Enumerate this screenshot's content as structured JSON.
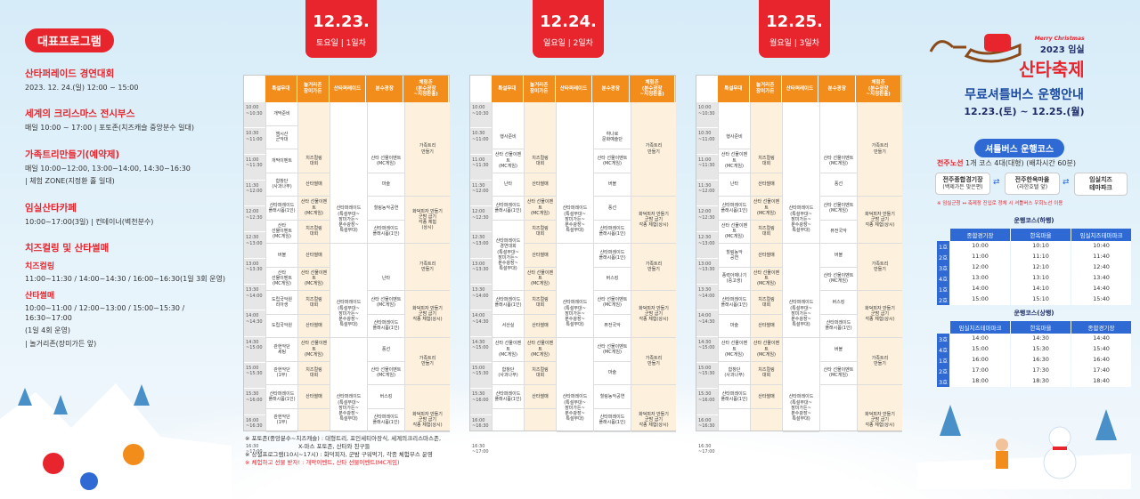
{
  "left": {
    "badge": "대표프로그램",
    "sections": [
      {
        "title": "산타퍼레이드 경연대회",
        "lines": [
          "2023. 12. 24.(일) 12:00 ~ 15:00"
        ]
      },
      {
        "title": "세계의 크리스마스 전시부스",
        "lines": [
          "매일 10:00 ~ 17:00 | 포토존(치즈캐슬 중앙분수 일대)"
        ]
      },
      {
        "title": "가족트리만들기(예약제)",
        "lines": [
          "매일 10:00~12:00, 13:00~14:00, 14:30~16:30",
          "| 체험 ZONE(지정환 홀 일대)"
        ]
      },
      {
        "title": "임실산타카페",
        "lines": [
          "10:00~17:00(3일) | 컨테이너(벽천분수)"
        ]
      },
      {
        "title": "치즈컬링 및 산타썰매",
        "lines": []
      }
    ],
    "sub1": "치즈컬링",
    "sub1_line": "11:00~11:30 / 14:00~14:30 / 16:00~16:30(1일 3회 운영)",
    "sub2": "산타썰매",
    "sub2_lines": [
      "10:00~11:00 / 12:00~13:00 / 15:00~15:30 / 16:30~17:00",
      "(1일 4회 운영)",
      "| 놀거리존(장미가든 앞)"
    ]
  },
  "days": [
    {
      "date": "12.23.",
      "weekday": "토요일 | 1일차"
    },
    {
      "date": "12.24.",
      "weekday": "일요일 | 2일차"
    },
    {
      "date": "12.25.",
      "weekday": "월요일 | 3일차"
    }
  ],
  "columns": [
    "특설무대",
    "놀거리존\n장미가든",
    "산타퍼레이드",
    "분수광장",
    "체험존\n(분수광장\n~지정환홀)"
  ],
  "times": [
    "10:00\n~10:30",
    "10:30\n~11:00",
    "11:00\n~11:30",
    "11:30\n~12:00",
    "12:00\n~12:30",
    "12:30\n~13:00",
    "13:00\n~13:30",
    "13:30\n~14:00",
    "14:00\n~14:30",
    "14:30\n~15:00",
    "15:00\n~15:30",
    "15:30\n~16:00",
    "16:00\n~16:30",
    "16:30\n~17:00"
  ],
  "tables": [
    {
      "cells": [
        {
          "c": 0,
          "r": 0,
          "s": 1,
          "t": "개막준비"
        },
        {
          "c": 0,
          "r": 1,
          "s": 1,
          "t": "엠시산\n군악대"
        },
        {
          "c": 0,
          "r": 2,
          "s": 1,
          "t": "개막이벤트"
        },
        {
          "c": 0,
          "r": 3,
          "s": 1,
          "t": "합창단\n(사과나무)"
        },
        {
          "c": 0,
          "r": 4,
          "s": 1,
          "t": "산타퍼레이드\n플래시몹(1인)"
        },
        {
          "c": 0,
          "r": 5,
          "s": 1,
          "t": "산타\n선물이벤트\n(MC게임)"
        },
        {
          "c": 0,
          "r": 6,
          "s": 1,
          "t": "버블"
        },
        {
          "c": 0,
          "r": 7,
          "s": 1,
          "t": "산타\n선물이벤트\n(MC게임)"
        },
        {
          "c": 0,
          "r": 8,
          "s": 1,
          "t": "도립국악원\n리아생"
        },
        {
          "c": 0,
          "r": 9,
          "s": 1,
          "t": "도립국악원"
        },
        {
          "c": 0,
          "r": 10,
          "s": 1,
          "t": "관현악단\n세팅"
        },
        {
          "c": 0,
          "r": 11,
          "s": 1,
          "t": "관현악단\n(1부)"
        },
        {
          "c": 0,
          "r": 12,
          "s": 1,
          "t": "산타퍼레이드\n플래시몹(1인)"
        },
        {
          "c": 0,
          "r": 13,
          "s": 1,
          "t": "관현악단\n(1부)"
        },
        {
          "c": 1,
          "r": 2,
          "s": 1,
          "t": "치즈컬링\n대회"
        },
        {
          "c": 1,
          "r": 3,
          "s": 1,
          "t": "산타썰매"
        },
        {
          "c": 1,
          "r": 4,
          "s": 1,
          "t": "산타 선물이벤트\n(MC게임)"
        },
        {
          "c": 1,
          "r": 5,
          "s": 1,
          "t": "치즈컬링\n대회"
        },
        {
          "c": 1,
          "r": 6,
          "s": 1,
          "t": "산타썰매"
        },
        {
          "c": 1,
          "r": 7,
          "s": 1,
          "t": "산타 선물이벤트\n(MC게임)"
        },
        {
          "c": 1,
          "r": 8,
          "s": 1,
          "t": "치즈컬링\n대회"
        },
        {
          "c": 1,
          "r": 9,
          "s": 1,
          "t": "산타썰매"
        },
        {
          "c": 1,
          "r": 10,
          "s": 1,
          "t": "산타 선물이벤트\n(MC게임)"
        },
        {
          "c": 1,
          "r": 11,
          "s": 1,
          "t": "치즈컬링\n대회"
        },
        {
          "c": 1,
          "r": 12,
          "s": 1,
          "t": "산타썰매"
        },
        {
          "c": 2,
          "r": 4,
          "s": 2,
          "t": "산타퍼레이드\n(특설무대~\n장미가든~\n분수광장~\n특설무대)"
        },
        {
          "c": 2,
          "r": 8,
          "s": 2,
          "t": "산타퍼레이드\n(특설무대~\n장미가든~\n분수광장~\n특설무대)"
        },
        {
          "c": 2,
          "r": 12,
          "s": 2,
          "t": "산타퍼레이드\n(특설무대~\n장미가든~\n분수광장~\n특설무대)"
        },
        {
          "c": 3,
          "r": 2,
          "s": 1,
          "t": "산타 선물이벤트\n(MC게임)"
        },
        {
          "c": 3,
          "r": 3,
          "s": 1,
          "t": "마술"
        },
        {
          "c": 3,
          "r": 4,
          "s": 1,
          "t": "힐링농악공연"
        },
        {
          "c": 3,
          "r": 5,
          "s": 1,
          "t": "산타퍼레이드\n플래시몹(1인)"
        },
        {
          "c": 3,
          "r": 7,
          "s": 1,
          "t": "난타"
        },
        {
          "c": 3,
          "r": 8,
          "s": 1,
          "t": "산타 선물이벤트\n(MC게임)"
        },
        {
          "c": 3,
          "r": 9,
          "s": 1,
          "t": "산타퍼레이드\n플래시몹(1인)"
        },
        {
          "c": 3,
          "r": 10,
          "s": 1,
          "t": "풍선"
        },
        {
          "c": 3,
          "r": 11,
          "s": 1,
          "t": "산타 선물이벤트\n(MC게임)"
        },
        {
          "c": 3,
          "r": 12,
          "s": 1,
          "t": "버스킹"
        },
        {
          "c": 3,
          "r": 13,
          "s": 1,
          "t": "산타퍼레이드\n플래시몹(1인)"
        },
        {
          "c": 4,
          "r": 0,
          "s": 4,
          "t": "가족트리\n만들기"
        },
        {
          "c": 4,
          "r": 4,
          "s": 2,
          "t": "화덕피자 만들기\n군밤 굽기\n각종 체험\n(상시)"
        },
        {
          "c": 4,
          "r": 6,
          "s": 2,
          "t": "가족트리\n만들기"
        },
        {
          "c": 4,
          "r": 8,
          "s": 2,
          "t": "화덕피자 만들기\n군밤 굽기\n각종 체험(상시)"
        },
        {
          "c": 4,
          "r": 10,
          "s": 2,
          "t": "가족트리\n만들기"
        },
        {
          "c": 4,
          "r": 13,
          "s": 1,
          "t": "화덕피자 만들기\n군밤 굽기\n각종 체험(상시)"
        }
      ]
    },
    {
      "cells": [
        {
          "c": 0,
          "r": 1,
          "s": 1,
          "t": "행사준비"
        },
        {
          "c": 0,
          "r": 2,
          "s": 1,
          "t": "산타 선물이벤트\n(MC게임)"
        },
        {
          "c": 0,
          "r": 3,
          "s": 1,
          "t": "난타"
        },
        {
          "c": 0,
          "r": 4,
          "s": 1,
          "t": "산타퍼레이드\n플래시몹(1인)"
        },
        {
          "c": 0,
          "r": 5,
          "s": 3,
          "t": "산타퍼레이드\n경연대회\n(특설무대~\n장미가든~\n분수광장~\n특설무대)"
        },
        {
          "c": 0,
          "r": 8,
          "s": 1,
          "t": "산타퍼레이드\n플래시몹(1인)"
        },
        {
          "c": 0,
          "r": 9,
          "s": 1,
          "t": "서산실"
        },
        {
          "c": 0,
          "r": 10,
          "s": 1,
          "t": "산타 선물이벤트\n(MC게임)"
        },
        {
          "c": 0,
          "r": 11,
          "s": 1,
          "t": "합창단\n(사과나무)"
        },
        {
          "c": 0,
          "r": 12,
          "s": 1,
          "t": "산타퍼레이드\n플래시몹(1인)"
        },
        {
          "c": 1,
          "r": 2,
          "s": 1,
          "t": "치즈컬링\n대회"
        },
        {
          "c": 1,
          "r": 3,
          "s": 1,
          "t": "산타썰매"
        },
        {
          "c": 1,
          "r": 4,
          "s": 1,
          "t": "산타 선물이벤트\n(MC게임)"
        },
        {
          "c": 1,
          "r": 5,
          "s": 1,
          "t": "치즈컬링\n대회"
        },
        {
          "c": 1,
          "r": 6,
          "s": 1,
          "t": "산타썰매"
        },
        {
          "c": 1,
          "r": 7,
          "s": 1,
          "t": "산타 선물이벤트\n(MC게임)"
        },
        {
          "c": 1,
          "r": 8,
          "s": 1,
          "t": "치즈컬링\n대회"
        },
        {
          "c": 1,
          "r": 9,
          "s": 1,
          "t": "산타썰매"
        },
        {
          "c": 1,
          "r": 10,
          "s": 1,
          "t": "산타 선물이벤트\n(MC게임)"
        },
        {
          "c": 1,
          "r": 11,
          "s": 1,
          "t": "치즈컬링\n대회"
        },
        {
          "c": 1,
          "r": 12,
          "s": 1,
          "t": "산타썰매"
        },
        {
          "c": 2,
          "r": 4,
          "s": 2,
          "t": "산타퍼레이드\n(특설무대~\n장미가든~\n분수광장~\n특설무대)"
        },
        {
          "c": 2,
          "r": 8,
          "s": 2,
          "t": "산타퍼레이드\n(특설무대~\n장미가든~\n분수광장~\n특설무대)"
        },
        {
          "c": 2,
          "r": 12,
          "s": 2,
          "t": "산타퍼레이드\n(특설무대~\n장미가든~\n분수광장~\n특설무대)"
        },
        {
          "c": 3,
          "r": 1,
          "s": 1,
          "t": "하나로\n문화예술단"
        },
        {
          "c": 3,
          "r": 2,
          "s": 1,
          "t": "산타 선물이벤트\n(MC게임)"
        },
        {
          "c": 3,
          "r": 3,
          "s": 1,
          "t": "버블"
        },
        {
          "c": 3,
          "r": 4,
          "s": 1,
          "t": "풍선"
        },
        {
          "c": 3,
          "r": 5,
          "s": 1,
          "t": "산타퍼레이드\n플래시몹(1인)"
        },
        {
          "c": 3,
          "r": 6,
          "s": 1,
          "t": "산타퍼레이드\n플래시몹(1인)"
        },
        {
          "c": 3,
          "r": 7,
          "s": 1,
          "t": "버스킹"
        },
        {
          "c": 3,
          "r": 8,
          "s": 1,
          "t": "산타 선물이벤트\n(MC게임)"
        },
        {
          "c": 3,
          "r": 9,
          "s": 1,
          "t": "퓨전국악"
        },
        {
          "c": 3,
          "r": 10,
          "s": 1,
          "t": "산타 선물이벤트\n(MC게임)"
        },
        {
          "c": 3,
          "r": 11,
          "s": 1,
          "t": "마술"
        },
        {
          "c": 3,
          "r": 12,
          "s": 1,
          "t": "힐링농악공연"
        },
        {
          "c": 3,
          "r": 13,
          "s": 1,
          "t": "산타퍼레이드\n플래시몹(1인)"
        },
        {
          "c": 4,
          "r": 0,
          "s": 4,
          "t": "가족트리\n만들기"
        },
        {
          "c": 4,
          "r": 4,
          "s": 2,
          "t": "화덕피자 만들기\n군밤 굽기\n각종 체험(상시)"
        },
        {
          "c": 4,
          "r": 6,
          "s": 2,
          "t": "가족트리\n만들기"
        },
        {
          "c": 4,
          "r": 8,
          "s": 2,
          "t": "화덕피자 만들기\n군밤 굽기\n각종 체험(상시)"
        },
        {
          "c": 4,
          "r": 10,
          "s": 2,
          "t": "가족트리\n만들기"
        },
        {
          "c": 4,
          "r": 13,
          "s": 1,
          "t": "화덕피자 만들기\n군밤 굽기\n각종 체험(상시)"
        }
      ]
    },
    {
      "cells": [
        {
          "c": 0,
          "r": 1,
          "s": 1,
          "t": "행사준비"
        },
        {
          "c": 0,
          "r": 2,
          "s": 1,
          "t": "산타 선물이벤트\n(MC게임)"
        },
        {
          "c": 0,
          "r": 3,
          "s": 1,
          "t": "난타"
        },
        {
          "c": 0,
          "r": 4,
          "s": 1,
          "t": "산타퍼레이드\n플래시몹(1인)"
        },
        {
          "c": 0,
          "r": 5,
          "s": 1,
          "t": "산타 선물이벤트\n(MC게임)"
        },
        {
          "c": 0,
          "r": 6,
          "s": 1,
          "t": "힐링농악\n공연"
        },
        {
          "c": 0,
          "r": 7,
          "s": 1,
          "t": "풍력아제나기\n(중고생)"
        },
        {
          "c": 0,
          "r": 8,
          "s": 1,
          "t": "산타퍼레이드\n플래시몹(1인)"
        },
        {
          "c": 0,
          "r": 9,
          "s": 1,
          "t": "마술"
        },
        {
          "c": 0,
          "r": 10,
          "s": 1,
          "t": "산타 선물이벤트\n(MC게임)"
        },
        {
          "c": 0,
          "r": 11,
          "s": 1,
          "t": "합창단\n(사과나무)"
        },
        {
          "c": 0,
          "r": 12,
          "s": 1,
          "t": "산타퍼레이드\n플래시몹(1인)"
        },
        {
          "c": 1,
          "r": 2,
          "s": 1,
          "t": "치즈컬링\n대회"
        },
        {
          "c": 1,
          "r": 3,
          "s": 1,
          "t": "산타썰매"
        },
        {
          "c": 1,
          "r": 4,
          "s": 1,
          "t": "산타 선물이벤트\n(MC게임)"
        },
        {
          "c": 1,
          "r": 5,
          "s": 1,
          "t": "치즈컬링\n대회"
        },
        {
          "c": 1,
          "r": 6,
          "s": 1,
          "t": "산타썰매"
        },
        {
          "c": 1,
          "r": 7,
          "s": 1,
          "t": "산타 선물이벤트\n(MC게임)"
        },
        {
          "c": 1,
          "r": 8,
          "s": 1,
          "t": "치즈컬링\n대회"
        },
        {
          "c": 1,
          "r": 9,
          "s": 1,
          "t": "산타썰매"
        },
        {
          "c": 1,
          "r": 10,
          "s": 1,
          "t": "산타 선물이벤트\n(MC게임)"
        },
        {
          "c": 1,
          "r": 11,
          "s": 1,
          "t": "치즈컬링\n대회"
        },
        {
          "c": 1,
          "r": 12,
          "s": 1,
          "t": "산타썰매"
        },
        {
          "c": 2,
          "r": 4,
          "s": 2,
          "t": "산타퍼레이드\n(특설무대~\n장미가든~\n분수광장~\n특설무대)"
        },
        {
          "c": 2,
          "r": 8,
          "s": 2,
          "t": "산타퍼레이드\n(특설무대~\n장미가든~\n분수광장~\n특설무대)"
        },
        {
          "c": 2,
          "r": 12,
          "s": 2,
          "t": "산타퍼레이드\n(특설무대~\n장미가든~\n분수광장~\n특설무대)"
        },
        {
          "c": 3,
          "r": 2,
          "s": 1,
          "t": "산타 선물이벤트\n(MC게임)"
        },
        {
          "c": 3,
          "r": 3,
          "s": 1,
          "t": "풍선"
        },
        {
          "c": 3,
          "r": 4,
          "s": 1,
          "t": "산타 선물이벤트\n(MC게임)"
        },
        {
          "c": 3,
          "r": 5,
          "s": 1,
          "t": "퓨전국악"
        },
        {
          "c": 3,
          "r": 6,
          "s": 1,
          "t": "버블"
        },
        {
          "c": 3,
          "r": 7,
          "s": 1,
          "t": "산타 선물이벤트\n(MC게임)"
        },
        {
          "c": 3,
          "r": 8,
          "s": 1,
          "t": "버스킹"
        },
        {
          "c": 3,
          "r": 9,
          "s": 1,
          "t": "산타퍼레이드\n플래시몹(1인)"
        },
        {
          "c": 3,
          "r": 10,
          "s": 1,
          "t": "버블"
        },
        {
          "c": 3,
          "r": 11,
          "s": 1,
          "t": "산타 선물이벤트\n(MC게임)"
        },
        {
          "c": 4,
          "r": 0,
          "s": 4,
          "t": "가족트리\n만들기"
        },
        {
          "c": 4,
          "r": 4,
          "s": 2,
          "t": "화덕피자 만들기\n군밤 굽기\n각종 체험(상시)"
        },
        {
          "c": 4,
          "r": 6,
          "s": 2,
          "t": "가족트리\n만들기"
        },
        {
          "c": 4,
          "r": 8,
          "s": 2,
          "t": "화덕피자 만들기\n군밤 굽기\n각종 체험(상시)"
        },
        {
          "c": 4,
          "r": 10,
          "s": 2,
          "t": "가족트리\n만들기"
        },
        {
          "c": 4,
          "r": 13,
          "s": 1,
          "t": "화덕피자 만들기\n군밤 굽기\n각종 체험(상시)"
        }
      ]
    }
  ],
  "notes": [
    "※ 포토존(중앙분수~치즈캐슬) : 대형트리, 포인세티아장식, 세계의크리스마스존,",
    "X-마스 포토존, 산타와 친구들",
    "※ 상설프로그램(10시~17시) : 화덕피자, 군밤 구워먹기, 각종 체험부스 운영",
    "※ 체험하고 선물 받자! : 개막이벤트, 산타 선물이벤트(MC게임)"
  ],
  "right": {
    "merry": "Merry Christmas",
    "year": "2023 임실",
    "festival": "산타축제",
    "title": "무료셔틀버스 운행안내",
    "dates": "12.23.(토) ~ 12.25.(월)",
    "course_badge": "셔틀버스 운행코스",
    "route_name": "전주노선",
    "route_info": "1개 코스 4대(대형) (배차시간 60분)",
    "stop1": "전주종합경기장",
    "stop1_sub": "(백제가든 맞은편)",
    "stop2": "전주한옥마을",
    "stop2_sub": "(라한호텔 앞)",
    "stop3": "임실치즈\n테마파크",
    "route_note": "※ 임실군청 ↔ 축제장 진입로 정체 시 셔틀버스 우회노선 이용",
    "out_title": "운행코스(하행)",
    "out_headers": [
      "종합경기장",
      "한옥마을",
      "임실치즈테마파크"
    ],
    "out_rows": [
      [
        "1호",
        "10:00",
        "10:10",
        "10:40"
      ],
      [
        "2호",
        "11:00",
        "11:10",
        "11:40"
      ],
      [
        "3호",
        "12:00",
        "12:10",
        "12:40"
      ],
      [
        "4호",
        "13:00",
        "13:10",
        "13:40"
      ],
      [
        "1호",
        "14:00",
        "14:10",
        "14:40"
      ],
      [
        "2호",
        "15:00",
        "15:10",
        "15:40"
      ]
    ],
    "in_title": "운행코스(상행)",
    "in_headers": [
      "임실치즈테마파크",
      "한옥마을",
      "종합경기장"
    ],
    "in_rows": [
      [
        "3호",
        "14:00",
        "14:30",
        "14:40"
      ],
      [
        "4호",
        "15:00",
        "15:30",
        "15:40"
      ],
      [
        "1호",
        "16:00",
        "16:30",
        "16:40"
      ],
      [
        "2호",
        "17:00",
        "17:30",
        "17:40"
      ],
      [
        "3호",
        "18:00",
        "18:30",
        "18:40"
      ]
    ]
  }
}
